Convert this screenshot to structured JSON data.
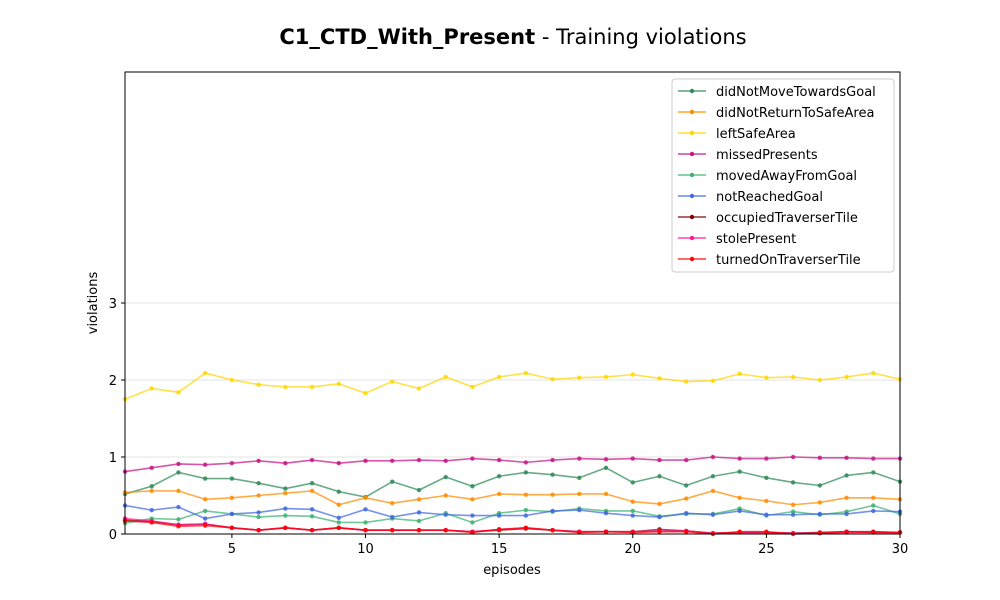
{
  "chart_data": {
    "type": "line",
    "title_bold": "C1_CTD_With_Present",
    "title_rest": " - Training violations",
    "xlabel": "episodes",
    "ylabel": "violations",
    "xlim": [
      1,
      30
    ],
    "ylim": [
      0,
      6
    ],
    "xticks": [
      5,
      10,
      15,
      20,
      25,
      30
    ],
    "yticks": [
      0,
      1,
      2,
      3
    ],
    "grid": "horizontal",
    "legend_position": "top-right",
    "x": [
      1,
      2,
      3,
      4,
      5,
      6,
      7,
      8,
      9,
      10,
      11,
      12,
      13,
      14,
      15,
      16,
      17,
      18,
      19,
      20,
      21,
      22,
      23,
      24,
      25,
      26,
      27,
      28,
      29,
      30
    ],
    "series": [
      {
        "name": "didNotMoveTowardsGoal",
        "color": "#2e8b57",
        "values": [
          0.52,
          0.62,
          0.8,
          0.72,
          0.72,
          0.66,
          0.59,
          0.66,
          0.55,
          0.48,
          0.68,
          0.57,
          0.74,
          0.62,
          0.75,
          0.8,
          0.77,
          0.73,
          0.86,
          0.67,
          0.75,
          0.63,
          0.75,
          0.81,
          0.73,
          0.67,
          0.63,
          0.76,
          0.8,
          0.68
        ]
      },
      {
        "name": "didNotReturnToSafeArea",
        "color": "#ff8c00",
        "values": [
          0.54,
          0.56,
          0.56,
          0.45,
          0.47,
          0.5,
          0.53,
          0.56,
          0.38,
          0.47,
          0.4,
          0.45,
          0.5,
          0.45,
          0.52,
          0.51,
          0.51,
          0.52,
          0.52,
          0.42,
          0.39,
          0.46,
          0.56,
          0.47,
          0.43,
          0.38,
          0.41,
          0.47,
          0.47,
          0.45
        ]
      },
      {
        "name": "leftSafeArea",
        "color": "#ffd700",
        "values": [
          1.75,
          1.89,
          1.84,
          2.09,
          2.0,
          1.94,
          1.91,
          1.91,
          1.95,
          1.83,
          1.98,
          1.89,
          2.04,
          1.91,
          2.04,
          2.09,
          2.01,
          2.03,
          2.04,
          2.07,
          2.02,
          1.98,
          1.99,
          2.08,
          2.03,
          2.04,
          2.0,
          2.04,
          2.09,
          2.01
        ]
      },
      {
        "name": "missedPresents",
        "color": "#c71585",
        "values": [
          0.81,
          0.86,
          0.91,
          0.9,
          0.92,
          0.95,
          0.92,
          0.96,
          0.92,
          0.95,
          0.95,
          0.96,
          0.95,
          0.98,
          0.96,
          0.93,
          0.96,
          0.98,
          0.97,
          0.98,
          0.96,
          0.96,
          1.0,
          0.98,
          0.98,
          1.0,
          0.99,
          0.99,
          0.98,
          0.98
        ]
      },
      {
        "name": "movedAwayFromGoal",
        "color": "#3cb371",
        "values": [
          0.14,
          0.2,
          0.19,
          0.3,
          0.26,
          0.22,
          0.24,
          0.23,
          0.15,
          0.15,
          0.2,
          0.17,
          0.27,
          0.15,
          0.27,
          0.31,
          0.29,
          0.33,
          0.3,
          0.3,
          0.23,
          0.26,
          0.26,
          0.33,
          0.24,
          0.29,
          0.25,
          0.29,
          0.37,
          0.26
        ]
      },
      {
        "name": "notReachedGoal",
        "color": "#4169e1",
        "values": [
          0.37,
          0.31,
          0.35,
          0.2,
          0.26,
          0.28,
          0.33,
          0.32,
          0.21,
          0.32,
          0.22,
          0.28,
          0.25,
          0.24,
          0.24,
          0.24,
          0.3,
          0.31,
          0.27,
          0.24,
          0.22,
          0.27,
          0.25,
          0.3,
          0.25,
          0.25,
          0.26,
          0.26,
          0.3,
          0.29
        ]
      },
      {
        "name": "occupiedTraverserTile",
        "color": "#800000",
        "values": [
          0.18,
          0.16,
          0.12,
          0.13,
          0.08,
          0.05,
          0.08,
          0.05,
          0.08,
          0.05,
          0.05,
          0.05,
          0.05,
          0.03,
          0.05,
          0.07,
          0.05,
          0.03,
          0.03,
          0.03,
          0.06,
          0.04,
          0.01,
          0.02,
          0.02,
          0.01,
          0.02,
          0.03,
          0.03,
          0.02
        ]
      },
      {
        "name": "stolePresent",
        "color": "#ff1493",
        "values": [
          0.2,
          0.17,
          0.12,
          0.13,
          0.08,
          0.05,
          0.08,
          0.05,
          0.08,
          0.05,
          0.05,
          0.05,
          0.05,
          0.03,
          0.06,
          0.08,
          0.05,
          0.03,
          0.03,
          0.03,
          0.04,
          0.04,
          0.01,
          0.02,
          0.02,
          0.01,
          0.01,
          0.02,
          0.02,
          0.02
        ]
      },
      {
        "name": "turnedOnTraverserTile",
        "color": "#ff0000",
        "values": [
          0.17,
          0.15,
          0.1,
          0.11,
          0.08,
          0.05,
          0.08,
          0.05,
          0.08,
          0.05,
          0.05,
          0.05,
          0.05,
          0.02,
          0.06,
          0.08,
          0.05,
          0.02,
          0.03,
          0.02,
          0.03,
          0.03,
          0.0,
          0.03,
          0.03,
          0.0,
          0.01,
          0.03,
          0.02,
          0.02
        ]
      }
    ]
  }
}
